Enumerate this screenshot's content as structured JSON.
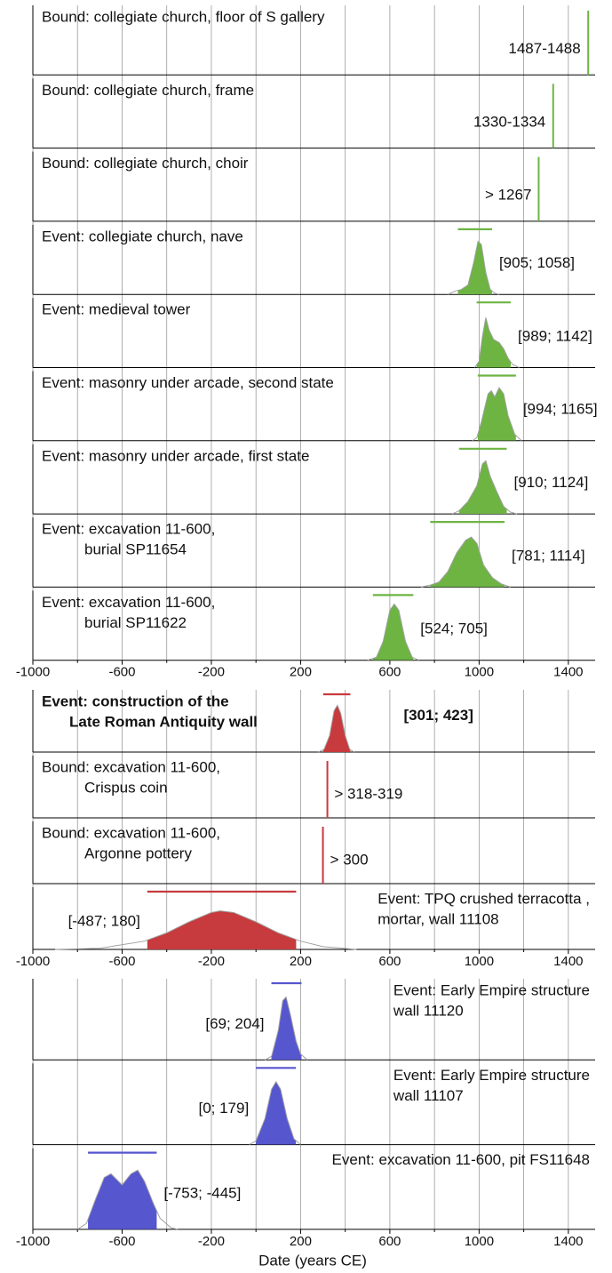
{
  "chart_data": [
    {
      "type": "density",
      "color": "#6db443",
      "xlim": [
        -1000,
        1520
      ],
      "xticks": [
        -1000,
        -600,
        -200,
        200,
        600,
        1000,
        1400
      ],
      "xminor_ticks": [
        -800,
        -400,
        0,
        400,
        800,
        1200
      ],
      "ylim": [
        0,
        1
      ],
      "grid": true,
      "panels": [
        {
          "kind": "bound",
          "label": [
            "Bound: collegiate church, floor of S gallery"
          ],
          "range": [
            1487,
            1488
          ],
          "value_label": "1487-1488",
          "label_side": "left"
        },
        {
          "kind": "bound",
          "label": [
            "Bound: collegiate church, frame"
          ],
          "range": [
            1330,
            1334
          ],
          "value_label": "1330-1334",
          "label_side": "left"
        },
        {
          "kind": "bound",
          "label": [
            "Bound: collegiate church, choir"
          ],
          "value": 1267,
          "value_label": "> 1267",
          "label_side": "left"
        },
        {
          "kind": "event",
          "label": [
            "Event: collegiate church, nave"
          ],
          "interval": [
            905,
            1058
          ],
          "interval_label": "[905; 1058]",
          "label_side": "right",
          "density": {
            "x": [
              860,
              890,
              920,
              950,
              975,
              995,
              1010,
              1030,
              1050,
              1070,
              1090
            ],
            "y": [
              0,
              0.05,
              0.08,
              0.15,
              0.5,
              0.85,
              0.8,
              0.35,
              0.08,
              0.02,
              0
            ]
          }
        },
        {
          "kind": "event",
          "label": [
            "Event: medieval tower"
          ],
          "interval": [
            989,
            1142
          ],
          "interval_label": "[989; 1142]",
          "label_side": "right",
          "density": {
            "x": [
              980,
              1000,
              1015,
              1030,
              1045,
              1065,
              1090,
              1110,
              1130,
              1150,
              1180
            ],
            "y": [
              0,
              0.1,
              0.5,
              0.8,
              0.6,
              0.45,
              0.4,
              0.3,
              0.15,
              0.05,
              0
            ]
          }
        },
        {
          "kind": "event",
          "label": [
            "Event: masonry under arcade, second state"
          ],
          "interval": [
            994,
            1165
          ],
          "interval_label": "[994; 1165]",
          "label_side": "right",
          "density": {
            "x": [
              970,
              990,
              1010,
              1040,
              1055,
              1070,
              1090,
              1110,
              1130,
              1160,
              1190
            ],
            "y": [
              0,
              0.05,
              0.3,
              0.75,
              0.8,
              0.7,
              0.85,
              0.75,
              0.4,
              0.1,
              0
            ]
          }
        },
        {
          "kind": "event",
          "label": [
            "Event: masonry under arcade, first state"
          ],
          "interval": [
            910,
            1124
          ],
          "interval_label": "[910; 1124]",
          "label_side": "right",
          "density": {
            "x": [
              880,
              910,
              950,
              990,
              1015,
              1030,
              1050,
              1080,
              1110,
              1140,
              1170
            ],
            "y": [
              0,
              0.05,
              0.2,
              0.45,
              0.8,
              0.85,
              0.6,
              0.35,
              0.12,
              0.03,
              0
            ]
          }
        },
        {
          "kind": "event",
          "label": [
            "Event: excavation 11-600,",
            "burial SP11654"
          ],
          "interval": [
            781,
            1114
          ],
          "interval_label": "[781; 1114]",
          "label_side": "right",
          "density": {
            "x": [
              740,
              780,
              820,
              860,
              900,
              940,
              965,
              990,
              1020,
              1060,
              1100,
              1140
            ],
            "y": [
              0,
              0.03,
              0.08,
              0.25,
              0.55,
              0.75,
              0.8,
              0.7,
              0.35,
              0.15,
              0.05,
              0
            ]
          }
        },
        {
          "kind": "event",
          "label": [
            "Event: excavation 11-600,",
            "burial SP11622"
          ],
          "interval": [
            524,
            705
          ],
          "interval_label": "[524; 705]",
          "label_side": "right",
          "density": {
            "x": [
              500,
              540,
              570,
              600,
              620,
              640,
              670,
              700,
              730
            ],
            "y": [
              0,
              0.05,
              0.3,
              0.8,
              0.9,
              0.8,
              0.3,
              0.05,
              0
            ]
          }
        }
      ]
    },
    {
      "type": "density",
      "color": "#c73a3d",
      "xlim": [
        -1000,
        1520
      ],
      "xticks": [
        -1000,
        -600,
        -200,
        200,
        600,
        1000,
        1400
      ],
      "xminor_ticks": [
        -800,
        -400,
        0,
        400,
        800,
        1200
      ],
      "ylim": [
        0,
        1
      ],
      "grid": true,
      "panels": [
        {
          "kind": "event",
          "bold": true,
          "label": [
            "Event: construction of the",
            "Late Roman Antiquity wall"
          ],
          "interval": [
            301,
            423
          ],
          "interval_label": "[301; 423]",
          "label_side": "right",
          "density": {
            "x": [
              280,
              305,
              330,
              350,
              365,
              380,
              400,
              420,
              440
            ],
            "y": [
              0,
              0.05,
              0.3,
              0.75,
              0.85,
              0.7,
              0.3,
              0.05,
              0
            ]
          }
        },
        {
          "kind": "bound",
          "label": [
            "Bound: excavation 11-600,",
            "Crispus coin"
          ],
          "range": [
            318,
            319
          ],
          "value_label": "> 318-319",
          "label_side": "right"
        },
        {
          "kind": "bound",
          "label": [
            "Bound: excavation 11-600,",
            "Argonne pottery"
          ],
          "value": 300,
          "value_label": "> 300",
          "label_side": "right"
        },
        {
          "kind": "event",
          "name_side": "right",
          "label": [
            "Event: TPQ crushed terracotta ,",
            "mortar, wall 11108"
          ],
          "interval": [
            -487,
            180
          ],
          "interval_label": "[-487; 180]",
          "label_side": "left",
          "density": {
            "x": [
              -900,
              -700,
              -500,
              -400,
              -300,
              -200,
              -160,
              -100,
              0,
              100,
              200,
              300,
              450
            ],
            "y": [
              0,
              0.02,
              0.15,
              0.3,
              0.5,
              0.67,
              0.7,
              0.67,
              0.5,
              0.3,
              0.15,
              0.05,
              0
            ]
          }
        }
      ]
    },
    {
      "type": "density",
      "color": "#5656cf",
      "xlim": [
        -1000,
        1520
      ],
      "xticks": [
        -1000,
        -600,
        -200,
        200,
        600,
        1000,
        1400
      ],
      "xminor_ticks": [
        -800,
        -400,
        0,
        400,
        800,
        1200
      ],
      "ylim": [
        0,
        1
      ],
      "grid": true,
      "xlabel": "Date (years CE)",
      "panels": [
        {
          "kind": "event",
          "name_side": "right",
          "label": [
            "Event: Early Empire structure",
            "wall 11120"
          ],
          "interval": [
            69,
            204
          ],
          "interval_label": "[69; 204]",
          "label_side": "left",
          "density": {
            "x": [
              40,
              70,
              100,
              120,
              135,
              155,
              180,
              200,
              230
            ],
            "y": [
              0,
              0.05,
              0.4,
              0.8,
              0.85,
              0.6,
              0.25,
              0.08,
              0
            ]
          }
        },
        {
          "kind": "event",
          "name_side": "right",
          "label": [
            "Event: Early Empire structure",
            "wall 11107"
          ],
          "interval": [
            0,
            179
          ],
          "interval_label": "[0; 179]",
          "label_side": "left",
          "density": {
            "x": [
              -30,
              0,
              40,
              70,
              90,
              110,
              140,
              170,
              200
            ],
            "y": [
              0,
              0.05,
              0.35,
              0.75,
              0.85,
              0.75,
              0.35,
              0.08,
              0
            ]
          }
        },
        {
          "kind": "event",
          "name_side": "right",
          "label": [
            "Event: excavation 11-600, pit FS11648"
          ],
          "interval": [
            -753,
            -445
          ],
          "interval_label": "[-753; -445]",
          "label_side": "right",
          "density": {
            "x": [
              -800,
              -760,
              -720,
              -680,
              -650,
              -600,
              -560,
              -530,
              -500,
              -460,
              -430,
              -380,
              -350
            ],
            "y": [
              0,
              0.08,
              0.4,
              0.7,
              0.75,
              0.6,
              0.75,
              0.8,
              0.65,
              0.35,
              0.15,
              0.02,
              0
            ]
          }
        }
      ]
    }
  ]
}
